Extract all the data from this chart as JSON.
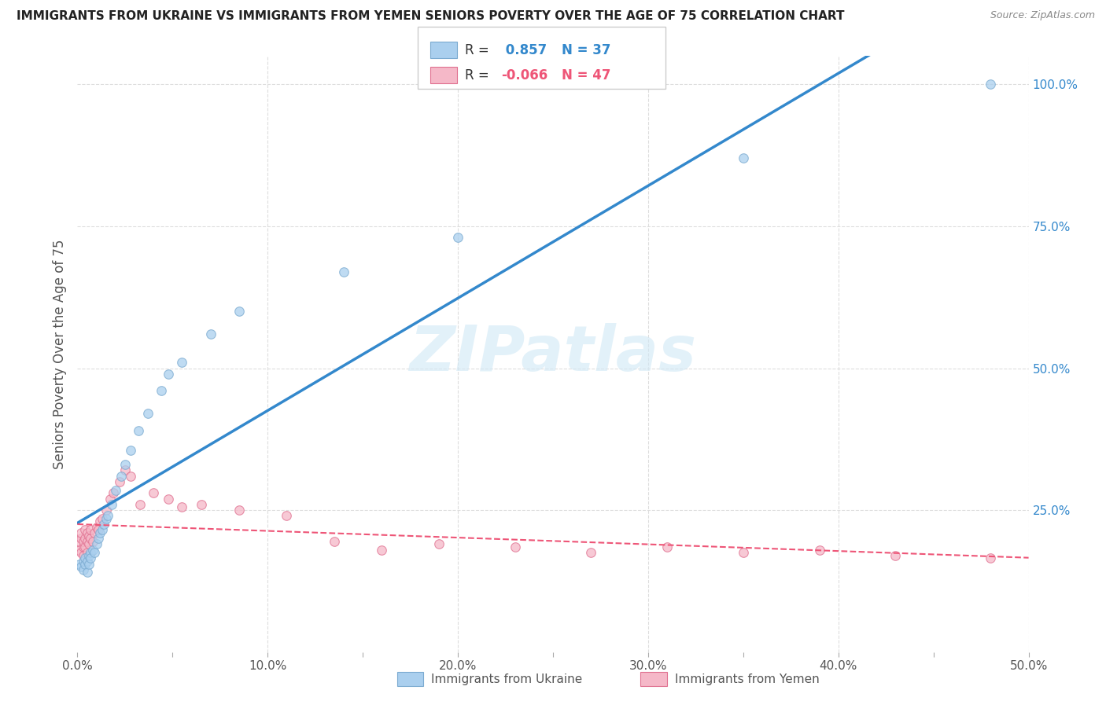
{
  "title": "IMMIGRANTS FROM UKRAINE VS IMMIGRANTS FROM YEMEN SENIORS POVERTY OVER THE AGE OF 75 CORRELATION CHART",
  "source": "Source: ZipAtlas.com",
  "ylabel": "Seniors Poverty Over the Age of 75",
  "xlim": [
    0.0,
    0.5
  ],
  "ylim": [
    0.0,
    1.05
  ],
  "xtick_labels": [
    "0.0%",
    "",
    "10.0%",
    "",
    "20.0%",
    "",
    "30.0%",
    "",
    "40.0%",
    "",
    "50.0%"
  ],
  "xtick_vals": [
    0.0,
    0.05,
    0.1,
    0.15,
    0.2,
    0.25,
    0.3,
    0.35,
    0.4,
    0.45,
    0.5
  ],
  "ytick_vals": [
    0.25,
    0.5,
    0.75,
    1.0
  ],
  "ytick_labels": [
    "25.0%",
    "50.0%",
    "75.0%",
    "100.0%"
  ],
  "ukraine_color": "#aacfee",
  "ukraine_edge": "#7aaad0",
  "yemen_color": "#f5b8c8",
  "yemen_edge": "#e07090",
  "ukraine_line_color": "#3388cc",
  "yemen_line_color": "#ee5577",
  "R_ukraine": 0.857,
  "N_ukraine": 37,
  "R_yemen": -0.066,
  "N_yemen": 47,
  "ukraine_scatter_x": [
    0.001,
    0.002,
    0.003,
    0.003,
    0.004,
    0.004,
    0.005,
    0.005,
    0.006,
    0.006,
    0.007,
    0.007,
    0.008,
    0.009,
    0.01,
    0.011,
    0.012,
    0.013,
    0.014,
    0.015,
    0.016,
    0.018,
    0.02,
    0.023,
    0.025,
    0.028,
    0.032,
    0.037,
    0.044,
    0.048,
    0.055,
    0.07,
    0.085,
    0.14,
    0.2,
    0.35,
    0.48
  ],
  "ukraine_scatter_y": [
    0.155,
    0.15,
    0.145,
    0.16,
    0.155,
    0.165,
    0.14,
    0.16,
    0.17,
    0.155,
    0.175,
    0.165,
    0.18,
    0.175,
    0.19,
    0.2,
    0.21,
    0.215,
    0.225,
    0.235,
    0.24,
    0.26,
    0.285,
    0.31,
    0.33,
    0.355,
    0.39,
    0.42,
    0.46,
    0.49,
    0.51,
    0.56,
    0.6,
    0.67,
    0.73,
    0.87,
    1.0
  ],
  "yemen_scatter_x": [
    0.001,
    0.001,
    0.002,
    0.002,
    0.002,
    0.003,
    0.003,
    0.003,
    0.004,
    0.004,
    0.004,
    0.005,
    0.005,
    0.005,
    0.006,
    0.006,
    0.007,
    0.007,
    0.008,
    0.009,
    0.01,
    0.011,
    0.012,
    0.013,
    0.015,
    0.017,
    0.019,
    0.022,
    0.025,
    0.028,
    0.033,
    0.04,
    0.048,
    0.055,
    0.065,
    0.085,
    0.11,
    0.135,
    0.16,
    0.19,
    0.23,
    0.27,
    0.31,
    0.35,
    0.39,
    0.43,
    0.48
  ],
  "yemen_scatter_y": [
    0.18,
    0.195,
    0.2,
    0.175,
    0.21,
    0.185,
    0.195,
    0.17,
    0.2,
    0.215,
    0.185,
    0.195,
    0.175,
    0.21,
    0.19,
    0.205,
    0.2,
    0.215,
    0.195,
    0.21,
    0.22,
    0.215,
    0.23,
    0.235,
    0.25,
    0.27,
    0.28,
    0.3,
    0.32,
    0.31,
    0.26,
    0.28,
    0.27,
    0.255,
    0.26,
    0.25,
    0.24,
    0.195,
    0.18,
    0.19,
    0.185,
    0.175,
    0.185,
    0.175,
    0.18,
    0.17,
    0.165
  ],
  "watermark": "ZIPatlas",
  "background_color": "#ffffff",
  "grid_color": "#dddddd",
  "marker_size": 70,
  "legend_labels": [
    "Immigrants from Ukraine",
    "Immigrants from Yemen"
  ]
}
